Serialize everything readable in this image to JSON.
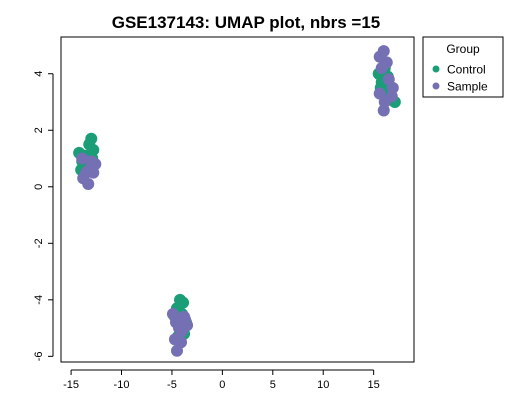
{
  "chart_data": {
    "type": "scatter",
    "title": "GSE137143: UMAP plot, nbrs =15",
    "xlabel": "",
    "ylabel": "",
    "xlim": [
      -16,
      19
    ],
    "ylim": [
      -6.2,
      5.3
    ],
    "xticks": [
      -15,
      -10,
      -5,
      0,
      5,
      10,
      15
    ],
    "yticks": [
      -6,
      -4,
      -2,
      0,
      2,
      4
    ],
    "grid": false,
    "legend": {
      "title": "Group",
      "position": "top-right"
    },
    "series": [
      {
        "name": "Control",
        "color": "#1b9e77",
        "points": [
          [
            -14.2,
            1.2
          ],
          [
            -13.9,
            0.9
          ],
          [
            -13.6,
            1.1
          ],
          [
            -13.2,
            1.5
          ],
          [
            -13.0,
            1.7
          ],
          [
            -12.8,
            1.3
          ],
          [
            -13.5,
            0.7
          ],
          [
            -13.1,
            0.8
          ],
          [
            -12.9,
            1.0
          ],
          [
            -14.0,
            0.6
          ],
          [
            -4.5,
            -4.3
          ],
          [
            -4.2,
            -4.0
          ],
          [
            -3.9,
            -4.1
          ],
          [
            -4.7,
            -4.6
          ],
          [
            -4.1,
            -4.9
          ],
          [
            -3.8,
            -5.2
          ],
          [
            -4.4,
            -5.3
          ],
          [
            -4.0,
            -4.5
          ],
          [
            -3.6,
            -4.8
          ],
          [
            15.5,
            4.0
          ],
          [
            15.8,
            3.7
          ],
          [
            16.1,
            4.2
          ],
          [
            16.4,
            3.9
          ],
          [
            15.9,
            3.3
          ],
          [
            16.7,
            3.4
          ],
          [
            17.1,
            3.0
          ],
          [
            16.2,
            3.6
          ],
          [
            15.7,
            3.5
          ]
        ]
      },
      {
        "name": "Sample",
        "color": "#7570b3",
        "points": [
          [
            -13.8,
            0.3
          ],
          [
            -13.3,
            0.1
          ],
          [
            -13.5,
            0.5
          ],
          [
            -13.0,
            0.9
          ],
          [
            -12.6,
            0.8
          ],
          [
            -12.8,
            0.5
          ],
          [
            -13.9,
            1.0
          ],
          [
            -13.2,
            0.6
          ],
          [
            -4.9,
            -4.5
          ],
          [
            -4.6,
            -4.8
          ],
          [
            -4.3,
            -5.0
          ],
          [
            -4.7,
            -5.4
          ],
          [
            -4.5,
            -5.8
          ],
          [
            -4.0,
            -5.1
          ],
          [
            -3.7,
            -4.7
          ],
          [
            -3.5,
            -4.9
          ],
          [
            -4.1,
            -5.5
          ],
          [
            -3.8,
            -4.6
          ],
          [
            15.6,
            4.6
          ],
          [
            16.0,
            4.8
          ],
          [
            16.3,
            4.4
          ],
          [
            15.8,
            4.2
          ],
          [
            16.1,
            3.0
          ],
          [
            16.0,
            2.7
          ],
          [
            16.5,
            3.8
          ],
          [
            16.8,
            3.2
          ],
          [
            15.6,
            3.3
          ],
          [
            16.9,
            3.5
          ]
        ]
      }
    ]
  }
}
